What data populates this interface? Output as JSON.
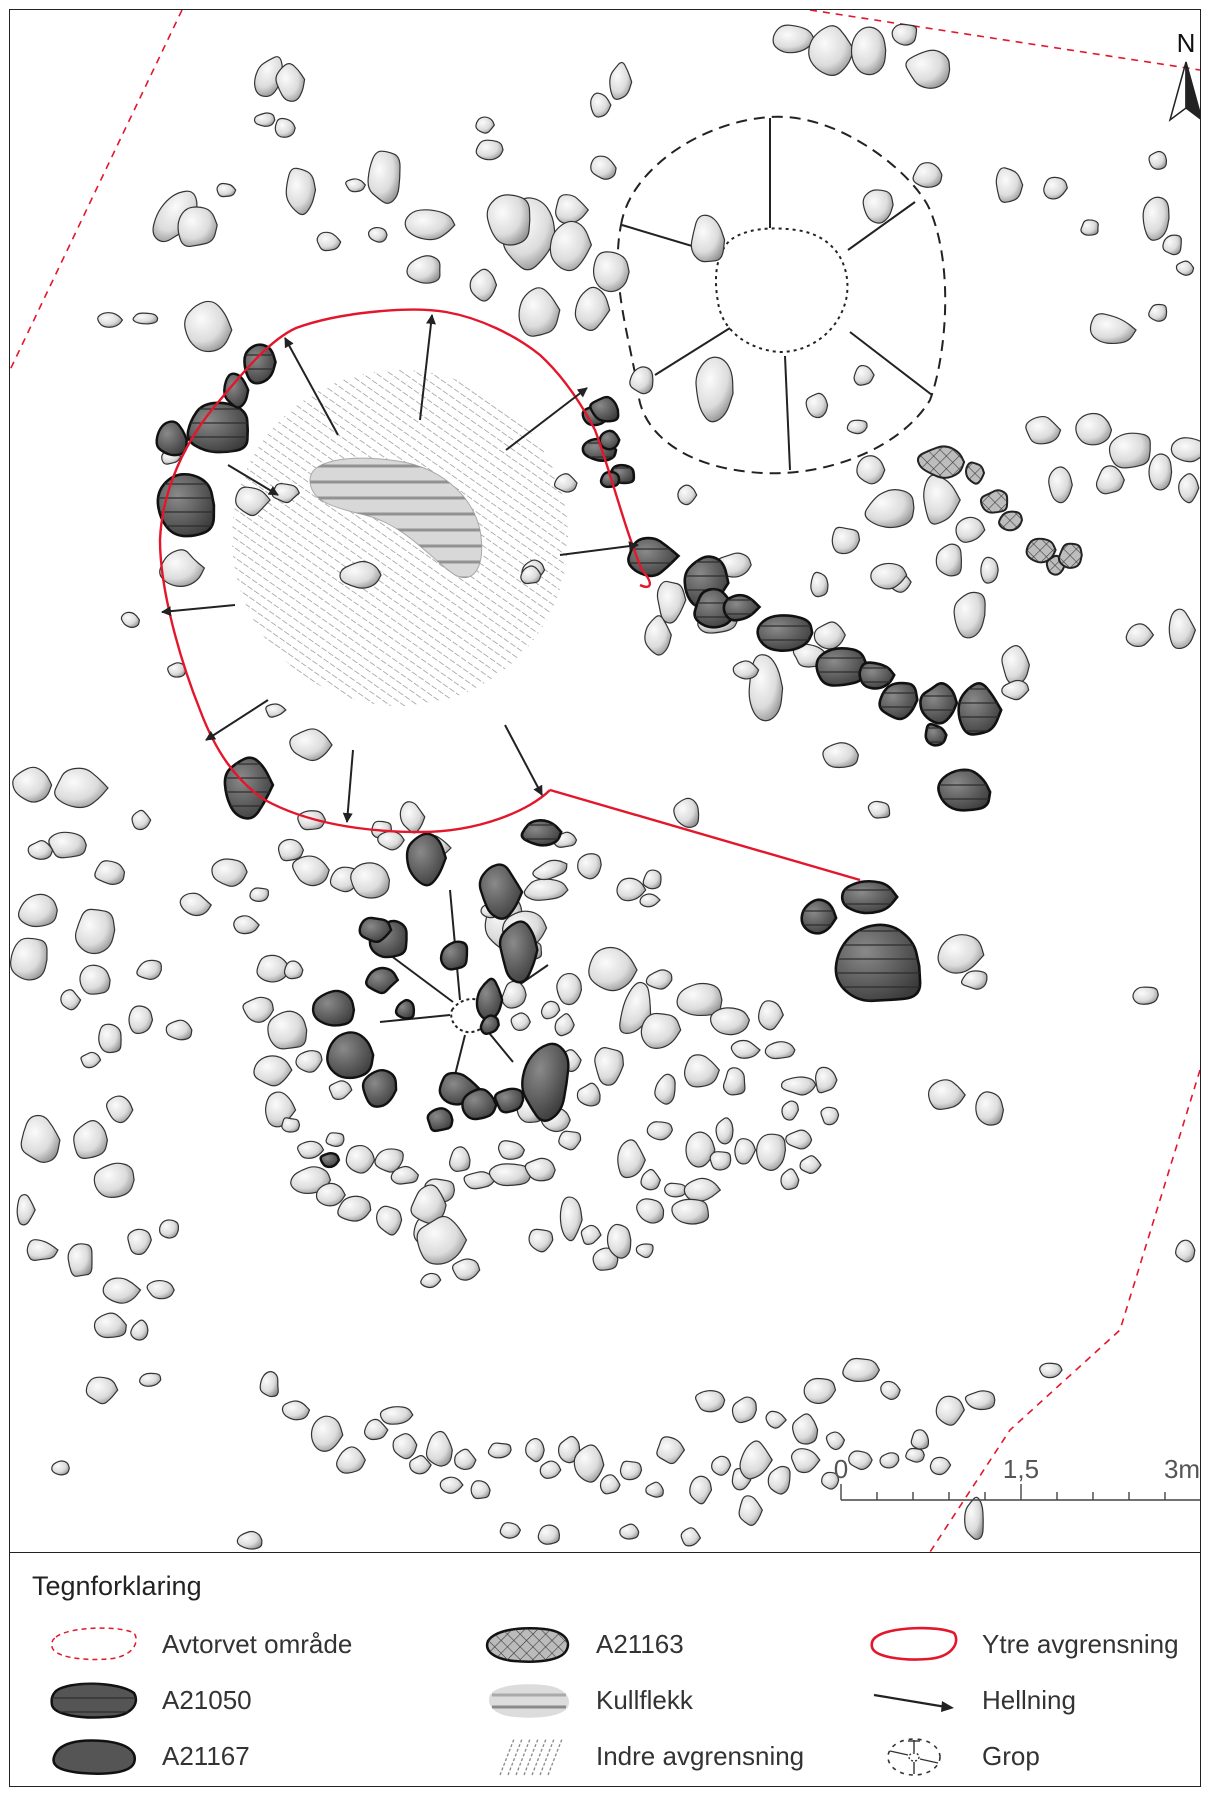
{
  "map": {
    "north_label": "N",
    "scale": {
      "ticks": [
        "0",
        "1,5",
        "3m"
      ]
    },
    "colors": {
      "outer_boundary": "#e3162b",
      "stripped_area": "#e3162b",
      "stone_fill": "#e6e6e6",
      "dark_stone_fill": "#555555"
    }
  },
  "legend": {
    "title": "Tegnforklaring",
    "items": [
      {
        "label": "Avtorvet område",
        "symbol": "dashed-red-outline-icon"
      },
      {
        "label": "A21163",
        "symbol": "crosshatched-stone-icon"
      },
      {
        "label": "Ytre avgrensning",
        "symbol": "red-outline-icon"
      },
      {
        "label": "A21050",
        "symbol": "dark-striped-stone-icon"
      },
      {
        "label": "Kullflekk",
        "symbol": "grey-striped-patch-icon"
      },
      {
        "label": "Hellning",
        "symbol": "slope-arrow-icon"
      },
      {
        "label": "A21167",
        "symbol": "dark-stone-icon"
      },
      {
        "label": "Indre avgrensning",
        "symbol": "diagonal-hatching-icon"
      },
      {
        "label": "Grop",
        "symbol": "pit-icon"
      }
    ]
  }
}
